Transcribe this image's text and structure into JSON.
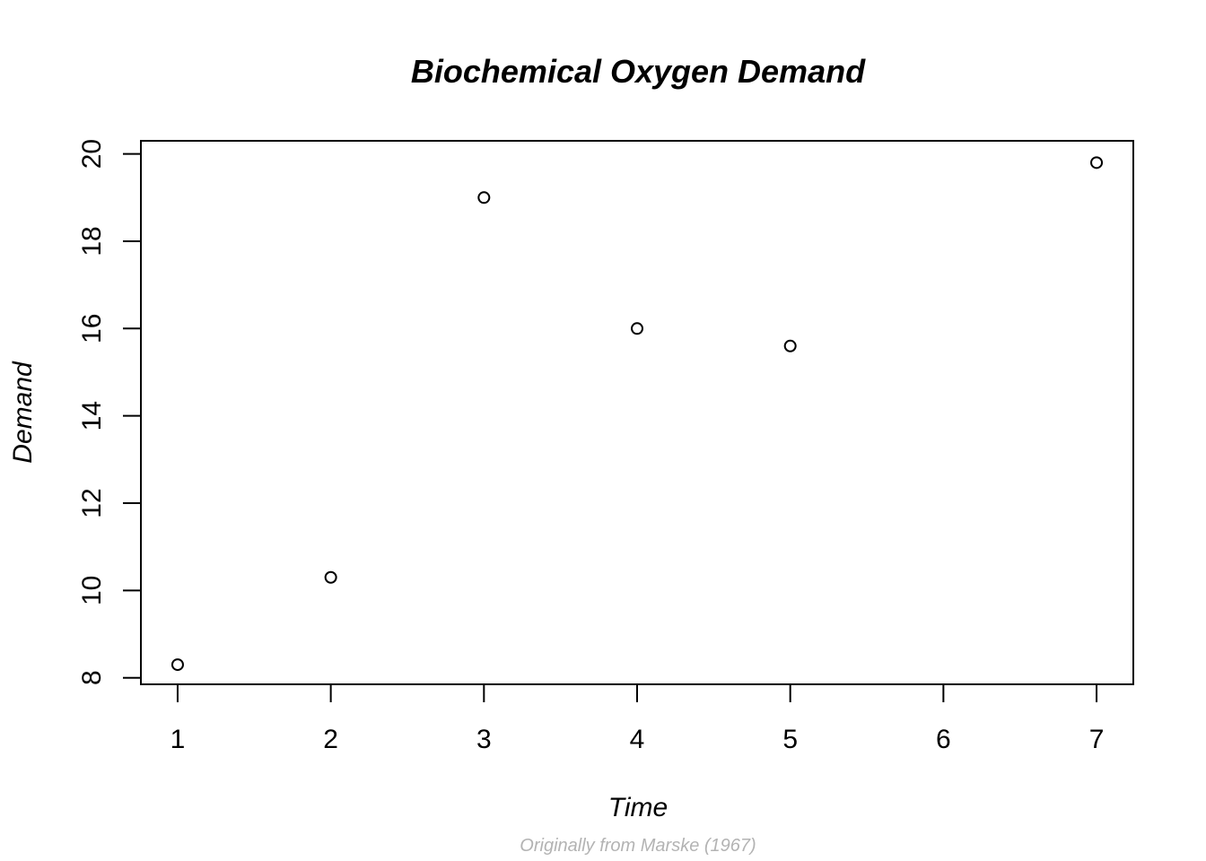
{
  "chart_data": {
    "type": "scatter",
    "title": "Biochemical Oxygen Demand",
    "xlabel": "Time",
    "ylabel": "Demand",
    "caption": "Originally from Marske (1967)",
    "xlim": [
      0.76,
      7.24
    ],
    "ylim": [
      7.85,
      20.3
    ],
    "x_ticks": [
      1,
      2,
      3,
      4,
      5,
      6,
      7
    ],
    "y_ticks": [
      8,
      10,
      12,
      14,
      16,
      18,
      20
    ],
    "grid": false,
    "legend": "none",
    "point_style": "open-circle",
    "points": [
      {
        "x": 1,
        "y": 8.3
      },
      {
        "x": 2,
        "y": 10.3
      },
      {
        "x": 3,
        "y": 19.0
      },
      {
        "x": 4,
        "y": 16.0
      },
      {
        "x": 5,
        "y": 15.6
      },
      {
        "x": 7,
        "y": 19.8
      }
    ]
  }
}
